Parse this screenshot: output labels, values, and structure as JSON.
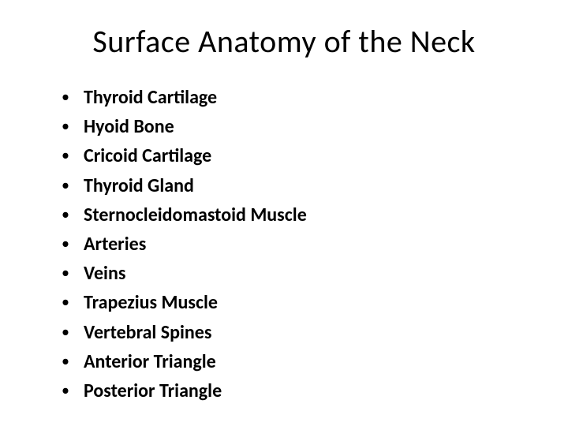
{
  "slide": {
    "title": "Surface Anatomy of the Neck",
    "title_fontsize": 40,
    "title_color": "#000000",
    "background_color": "#ffffff",
    "bullets": [
      "Thyroid Cartilage",
      "Hyoid Bone",
      "Cricoid Cartilage",
      "Thyroid Gland",
      "Sternocleidomastoid Muscle",
      "Arteries",
      "Veins",
      "Trapezius Muscle",
      "Vertebral Spines",
      "Anterior Triangle",
      "Posterior Triangle"
    ],
    "bullet_fontsize": 24,
    "bullet_fontweight": 700,
    "bullet_color": "#000000",
    "bullet_marker": "•"
  }
}
